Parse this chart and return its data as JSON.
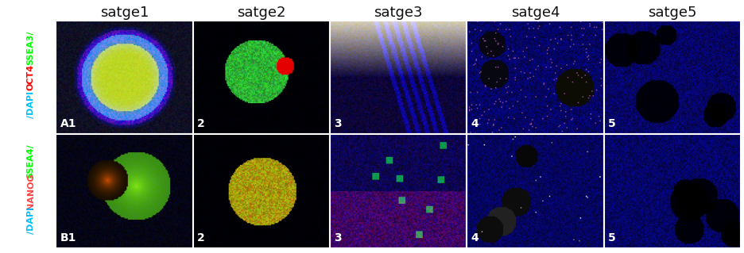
{
  "col_headers": [
    "satge1",
    "satge2",
    "satge3",
    "satge4",
    "satge5"
  ],
  "row_a_label_parts": [
    "SSEA3/",
    "OCT4",
    "/DAPI"
  ],
  "row_a_label_colors": [
    "#00ff00",
    "#ff0000",
    "#00bfff"
  ],
  "row_b_label_parts": [
    "SSEA4/",
    "NANOG",
    "/DAPI"
  ],
  "row_b_label_colors": [
    "#00ff00",
    "#ff4444",
    "#00bfff"
  ],
  "cell_labels_a": [
    "A1",
    "2",
    "3",
    "4",
    "5"
  ],
  "cell_labels_b": [
    "B1",
    "2",
    "3",
    "4",
    "5"
  ],
  "header_text_color": "#111111",
  "col_header_fontsize": 13,
  "cell_label_fontsize": 10,
  "row_label_fontsize": 8,
  "fig_bg": "#ffffff",
  "border_color": "#ffffff",
  "border_lw": 1.5
}
